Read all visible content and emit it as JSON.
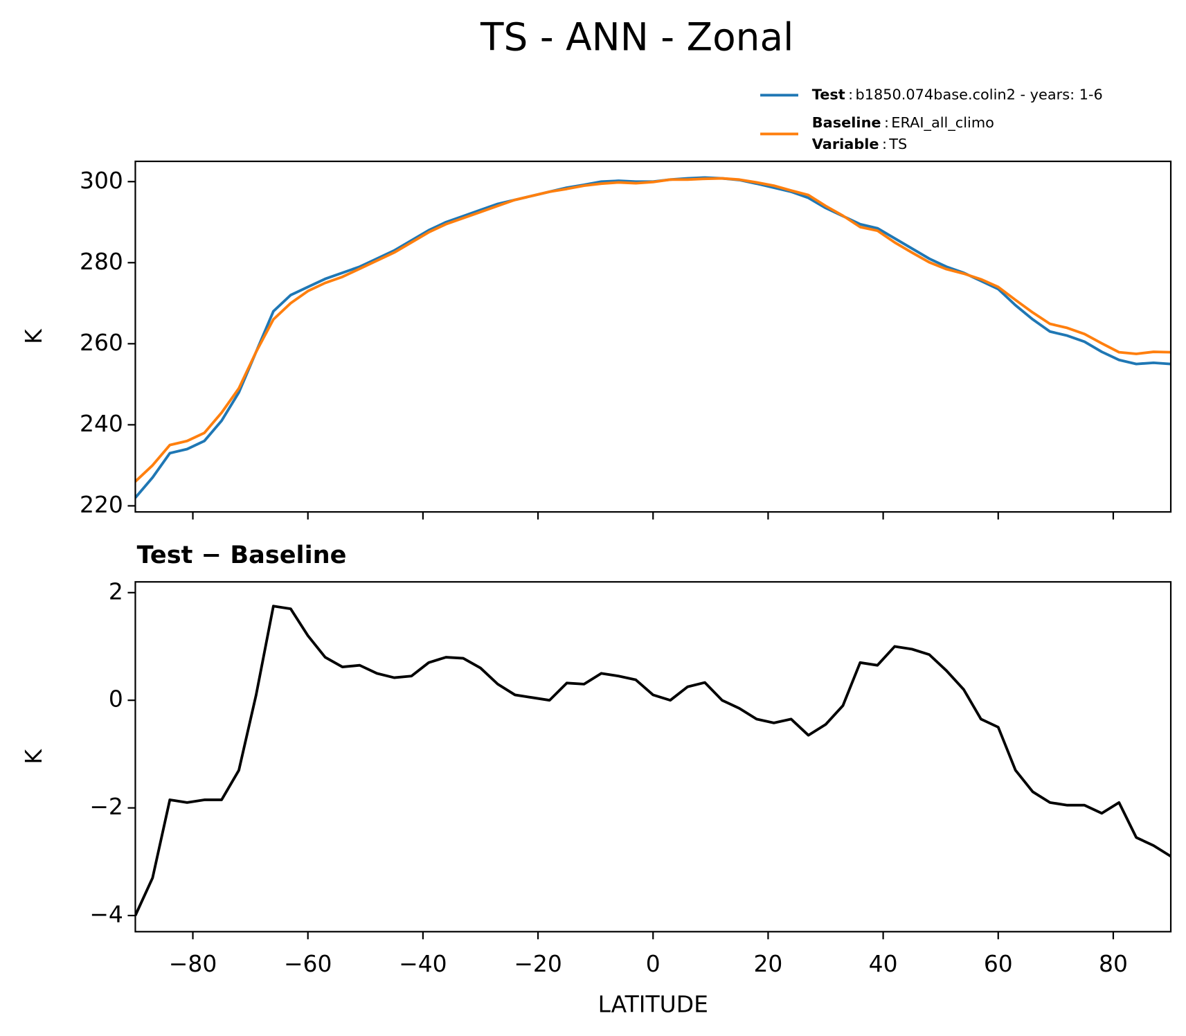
{
  "title": "TS - ANN - Zonal",
  "chart_data": [
    {
      "type": "line",
      "ylabel": "K",
      "legend_separator": ":",
      "x": [
        -90,
        -87,
        -84,
        -81,
        -78,
        -75,
        -72,
        -69,
        -66,
        -63,
        -60,
        -57,
        -54,
        -51,
        -48,
        -45,
        -42,
        -39,
        -36,
        -33,
        -30,
        -27,
        -24,
        -21,
        -18,
        -15,
        -12,
        -9,
        -6,
        -3,
        0,
        3,
        6,
        9,
        12,
        15,
        18,
        21,
        24,
        27,
        30,
        33,
        36,
        39,
        42,
        45,
        48,
        51,
        54,
        57,
        60,
        63,
        66,
        69,
        72,
        75,
        78,
        81,
        84,
        87,
        90
      ],
      "series": [
        {
          "name": "Test",
          "description": "b1850.074base.colin2 - years: 1-6",
          "color": "#1f77b4",
          "values": [
            222,
            227,
            233,
            234,
            236,
            241,
            248,
            258,
            268,
            272,
            274,
            276,
            277.5,
            279,
            281,
            283,
            285.5,
            288,
            290,
            291.5,
            293,
            294.5,
            295.5,
            296.5,
            297.5,
            298.5,
            299.2,
            300,
            300.2,
            300,
            300,
            300.5,
            300.8,
            301,
            300.8,
            300.4,
            299.5,
            298.5,
            297.5,
            296,
            293.5,
            291.5,
            289.5,
            288.5,
            286,
            283.5,
            281,
            279,
            277.5,
            275.5,
            273.5,
            269.5,
            266,
            263,
            262,
            260.5,
            258,
            256,
            255,
            255.3,
            255
          ]
        },
        {
          "name": "Baseline",
          "description": "ERAI_all_climo",
          "variable_name": "Variable",
          "variable": "TS",
          "color": "#ff7f0e",
          "values": [
            226,
            230,
            235,
            236,
            238,
            243,
            249,
            258,
            266,
            270,
            273,
            275,
            276.5,
            278.5,
            280.5,
            282.5,
            285,
            287.5,
            289.5,
            291,
            292.5,
            294,
            295.5,
            296.5,
            297.5,
            298.2,
            299,
            299.5,
            299.8,
            299.6,
            299.9,
            300.5,
            300.5,
            300.7,
            300.8,
            300.5,
            299.8,
            299,
            297.8,
            296.7,
            294,
            291.6,
            288.8,
            287.9,
            285,
            282.5,
            280.1,
            278.4,
            277.3,
            275.9,
            274,
            270.8,
            267.7,
            264.9,
            263.9,
            262.4,
            260.1,
            257.9,
            257.5,
            258,
            257.9
          ]
        }
      ],
      "xlim": [
        -90,
        90
      ],
      "xticks": [
        -80,
        -60,
        -40,
        -20,
        0,
        20,
        40,
        60,
        80
      ],
      "ylim": [
        218.5,
        305
      ],
      "yticks": [
        220,
        240,
        260,
        280,
        300
      ]
    },
    {
      "type": "line",
      "title": "Test − Baseline",
      "xlabel": "LATITUDE",
      "ylabel": "K",
      "x": [
        -90,
        -87,
        -84,
        -81,
        -78,
        -75,
        -72,
        -69,
        -66,
        -63,
        -60,
        -57,
        -54,
        -51,
        -48,
        -45,
        -42,
        -39,
        -36,
        -33,
        -30,
        -27,
        -24,
        -21,
        -18,
        -15,
        -12,
        -9,
        -6,
        -3,
        0,
        3,
        6,
        9,
        12,
        15,
        18,
        21,
        24,
        27,
        30,
        33,
        36,
        39,
        42,
        45,
        48,
        51,
        54,
        57,
        60,
        63,
        66,
        69,
        72,
        75,
        78,
        81,
        84,
        87,
        90
      ],
      "series": [
        {
          "color": "#000000",
          "values": [
            -4.0,
            -3.3,
            -1.85,
            -1.9,
            -1.85,
            -1.85,
            -1.3,
            0.1,
            1.75,
            1.7,
            1.2,
            0.8,
            0.62,
            0.65,
            0.5,
            0.42,
            0.45,
            0.7,
            0.8,
            0.78,
            0.6,
            0.3,
            0.1,
            0.05,
            0.0,
            0.32,
            0.3,
            0.5,
            0.45,
            0.38,
            0.1,
            0.0,
            0.25,
            0.33,
            0.0,
            -0.15,
            -0.35,
            -0.42,
            -0.35,
            -0.65,
            -0.45,
            -0.1,
            0.7,
            0.65,
            1.0,
            0.95,
            0.85,
            0.55,
            0.2,
            -0.35,
            -0.5,
            -1.3,
            -1.7,
            -1.9,
            -1.95,
            -1.95,
            -2.1,
            -1.9,
            -2.55,
            -2.7,
            -2.9
          ]
        }
      ],
      "xlim": [
        -90,
        90
      ],
      "xticks": [
        {
          "value": -80,
          "label": "−80"
        },
        {
          "value": -60,
          "label": "−60"
        },
        {
          "value": -40,
          "label": "−40"
        },
        {
          "value": -20,
          "label": "−20"
        },
        0,
        20,
        40,
        60,
        80
      ],
      "ylim": [
        -4.3,
        2.2
      ],
      "yticks": [
        {
          "value": -4,
          "label": "−4"
        },
        {
          "value": -2,
          "label": "−2"
        },
        0,
        2
      ]
    }
  ]
}
